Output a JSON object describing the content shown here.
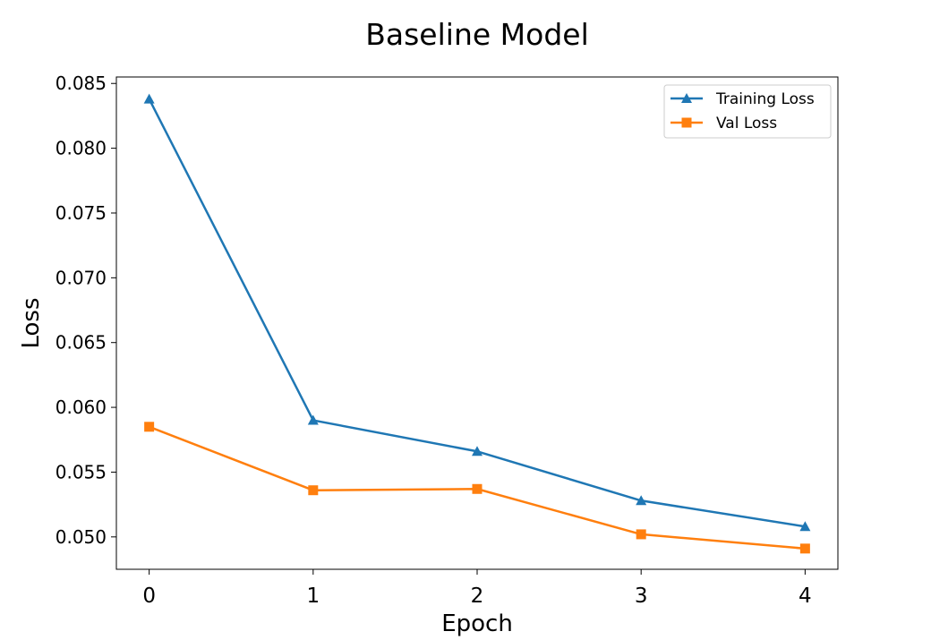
{
  "chart_data": {
    "type": "line",
    "title": "Baseline Model",
    "xlabel": "Epoch",
    "ylabel": "Loss",
    "x": [
      0,
      1,
      2,
      3,
      4
    ],
    "xlim": [
      -0.2,
      4.2
    ],
    "ylim": [
      0.0475,
      0.0855
    ],
    "xticks": [
      "0",
      "1",
      "2",
      "3",
      "4"
    ],
    "yticks": [
      "0.050",
      "0.055",
      "0.060",
      "0.065",
      "0.070",
      "0.075",
      "0.080",
      "0.085"
    ],
    "grid": false,
    "legend_position": "top-right",
    "series": [
      {
        "name": "Training Loss",
        "values": [
          0.0838,
          0.059,
          0.0566,
          0.0528,
          0.0508
        ],
        "color": "#1f77b4",
        "marker": "triangle"
      },
      {
        "name": "Val Loss",
        "values": [
          0.0585,
          0.0536,
          0.0537,
          0.0502,
          0.0491
        ],
        "color": "#ff7f0e",
        "marker": "square"
      }
    ]
  }
}
